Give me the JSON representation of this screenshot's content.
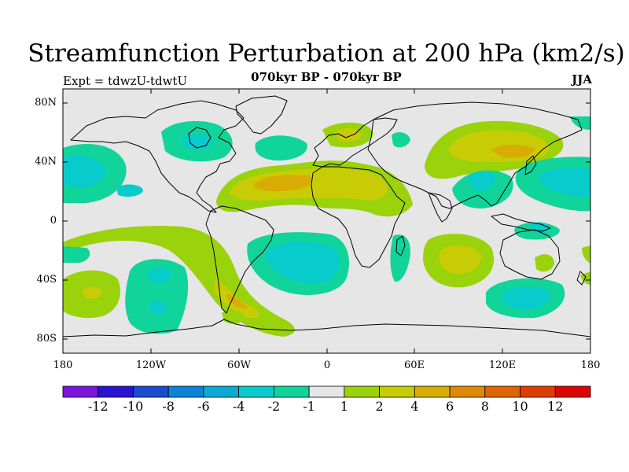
{
  "title": "Streamfunction Perturbation at 200 hPa (km2/s)",
  "subtitle": "070kyr BP - 070kyr BP",
  "expt_label": "Expt = tdwzU-tdwtU",
  "season": "JJA",
  "map": {
    "projection": "cylindrical equidistant",
    "lon_range": [
      -180,
      180
    ],
    "lat_range": [
      -90,
      90
    ],
    "land_outline": "black coastlines",
    "background_color": "#e6e6e6",
    "ylabels": [
      "80N",
      "40N",
      "0",
      "40S",
      "80S"
    ],
    "xlabels": [
      "180",
      "120W",
      "60W",
      "0",
      "60E",
      "120E",
      "180"
    ]
  },
  "colorbar": {
    "colors": [
      "#7a16dc",
      "#2a14d2",
      "#1a4cd0",
      "#0a84d6",
      "#08aad6",
      "#08cccc",
      "#10d49a",
      "#e6e6e6",
      "#9ad20c",
      "#c8cc04",
      "#d8ac04",
      "#de8804",
      "#de6404",
      "#de3c04",
      "#de0404"
    ],
    "labels": [
      "-12",
      "-10",
      "-8",
      "-6",
      "-4",
      "-2",
      "-1",
      "1",
      "2",
      "4",
      "6",
      "8",
      "10",
      "12"
    ]
  },
  "chart_data": {
    "type": "contour-map",
    "variable": "streamfunction perturbation at 200 hPa",
    "units": "km2/s",
    "levels": [
      -12,
      -10,
      -8,
      -6,
      -4,
      -2,
      -1,
      1,
      2,
      4,
      6,
      8,
      10,
      12
    ],
    "features": [
      {
        "region": "North Atlantic / Saharan belt",
        "sign": "positive",
        "approx_max": 6
      },
      {
        "region": "Northeast Asia / North Pacific west",
        "sign": "positive",
        "approx_max": 6
      },
      {
        "region": "Southern South America / South Atlantic",
        "sign": "positive",
        "approx_max": 6
      },
      {
        "region": "South Indian Ocean",
        "sign": "positive",
        "approx_max": 4
      },
      {
        "region": "Central North Pacific",
        "sign": "negative",
        "approx_min": -6
      },
      {
        "region": "North Pacific east of Japan",
        "sign": "negative",
        "approx_min": -4
      },
      {
        "region": "Hudson Bay / Canada",
        "sign": "negative",
        "approx_min": -4
      },
      {
        "region": "South Atlantic",
        "sign": "negative",
        "approx_min": -4
      },
      {
        "region": "South Pacific",
        "sign": "negative",
        "approx_min": -4
      },
      {
        "region": "Southern Ocean south of Australia",
        "sign": "negative",
        "approx_min": -4
      }
    ]
  }
}
